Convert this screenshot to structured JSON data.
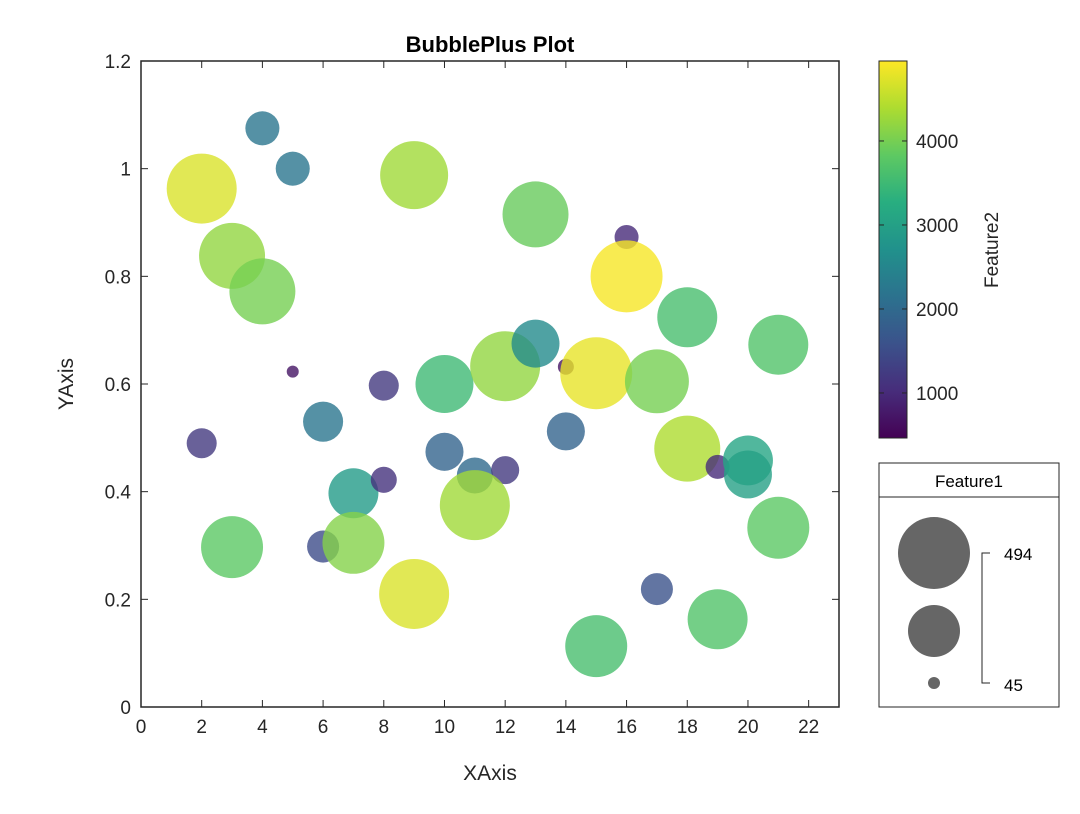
{
  "chart_data": {
    "type": "scatter",
    "title": "BubblePlus Plot",
    "xlabel": "XAxis",
    "ylabel": "YAxis",
    "xlim": [
      0,
      23
    ],
    "ylim": [
      0,
      1.2
    ],
    "xticks": [
      0,
      2,
      4,
      6,
      8,
      10,
      12,
      14,
      16,
      18,
      20,
      22
    ],
    "xtick_labels": [
      "0",
      "2",
      "4",
      "6",
      "8",
      "10",
      "12",
      "14",
      "16",
      "18",
      "20",
      "22"
    ],
    "yticks": [
      0,
      0.2,
      0.4,
      0.6,
      0.8,
      1,
      1.2
    ],
    "ytick_labels": [
      "0",
      "0.2",
      "0.4",
      "0.6",
      "0.8",
      "1",
      "1.2"
    ],
    "grid": false,
    "colorbar": {
      "label": "Feature2",
      "colormap": "viridis",
      "range": [
        464,
        4952
      ],
      "ticks": [
        1000,
        2000,
        3000,
        4000
      ],
      "tick_labels": [
        "1000",
        "2000",
        "3000",
        "4000"
      ]
    },
    "size_legend": {
      "title": "Feature1",
      "max_label": "494",
      "min_label": "45",
      "range": [
        45,
        494
      ],
      "placement": "bottom-right"
    },
    "points": [
      {
        "x": 2,
        "y": 0.963,
        "feature1": 479,
        "feature2": 4700
      },
      {
        "x": 3,
        "y": 0.838,
        "feature1": 449,
        "feature2": 4200
      },
      {
        "x": 4,
        "y": 0.772,
        "feature1": 449,
        "feature2": 4000
      },
      {
        "x": 4,
        "y": 1.075,
        "feature1": 210,
        "feature2": 2200
      },
      {
        "x": 5,
        "y": 1.0,
        "feature1": 210,
        "feature2": 2200
      },
      {
        "x": 9,
        "y": 0.988,
        "feature1": 464,
        "feature2": 4300
      },
      {
        "x": 13,
        "y": 0.915,
        "feature1": 449,
        "feature2": 3900
      },
      {
        "x": 16,
        "y": 0.873,
        "feature1": 135,
        "feature2": 1000
      },
      {
        "x": 16,
        "y": 0.8,
        "feature1": 494,
        "feature2": 4900
      },
      {
        "x": 18,
        "y": 0.724,
        "feature1": 404,
        "feature2": 3600
      },
      {
        "x": 21,
        "y": 0.673,
        "feature1": 404,
        "feature2": 3700
      },
      {
        "x": 5,
        "y": 0.623,
        "feature1": 45,
        "feature2": 700
      },
      {
        "x": 8,
        "y": 0.597,
        "feature1": 180,
        "feature2": 1200
      },
      {
        "x": 10,
        "y": 0.6,
        "feature1": 389,
        "feature2": 3500
      },
      {
        "x": 12,
        "y": 0.633,
        "feature1": 479,
        "feature2": 4200
      },
      {
        "x": 13,
        "y": 0.675,
        "feature1": 314,
        "feature2": 2600
      },
      {
        "x": 14,
        "y": 0.632,
        "feature1": 75,
        "feature2": 700
      },
      {
        "x": 15,
        "y": 0.62,
        "feature1": 494,
        "feature2": 4800
      },
      {
        "x": 17,
        "y": 0.605,
        "feature1": 434,
        "feature2": 4000
      },
      {
        "x": 2,
        "y": 0.49,
        "feature1": 180,
        "feature2": 1200
      },
      {
        "x": 6,
        "y": 0.53,
        "feature1": 255,
        "feature2": 2200
      },
      {
        "x": 10,
        "y": 0.474,
        "feature1": 240,
        "feature2": 1900
      },
      {
        "x": 11,
        "y": 0.43,
        "feature1": 225,
        "feature2": 2000
      },
      {
        "x": 12,
        "y": 0.44,
        "feature1": 165,
        "feature2": 1200
      },
      {
        "x": 14,
        "y": 0.512,
        "feature1": 240,
        "feature2": 1900
      },
      {
        "x": 18,
        "y": 0.48,
        "feature1": 449,
        "feature2": 4400
      },
      {
        "x": 19,
        "y": 0.446,
        "feature1": 135,
        "feature2": 1000
      },
      {
        "x": 20,
        "y": 0.458,
        "feature1": 329,
        "feature2": 3100
      },
      {
        "x": 20,
        "y": 0.432,
        "feature1": 314,
        "feature2": 3000
      },
      {
        "x": 7,
        "y": 0.397,
        "feature1": 329,
        "feature2": 2900
      },
      {
        "x": 8,
        "y": 0.422,
        "feature1": 150,
        "feature2": 1100
      },
      {
        "x": 11,
        "y": 0.375,
        "feature1": 479,
        "feature2": 4300
      },
      {
        "x": 3,
        "y": 0.297,
        "feature1": 419,
        "feature2": 3800
      },
      {
        "x": 6,
        "y": 0.298,
        "feature1": 195,
        "feature2": 1500
      },
      {
        "x": 7,
        "y": 0.305,
        "feature1": 419,
        "feature2": 4100
      },
      {
        "x": 9,
        "y": 0.21,
        "feature1": 479,
        "feature2": 4700
      },
      {
        "x": 21,
        "y": 0.333,
        "feature1": 419,
        "feature2": 3800
      },
      {
        "x": 17,
        "y": 0.219,
        "feature1": 195,
        "feature2": 1600
      },
      {
        "x": 15,
        "y": 0.113,
        "feature1": 419,
        "feature2": 3600
      },
      {
        "x": 19,
        "y": 0.163,
        "feature1": 404,
        "feature2": 3700
      }
    ]
  }
}
